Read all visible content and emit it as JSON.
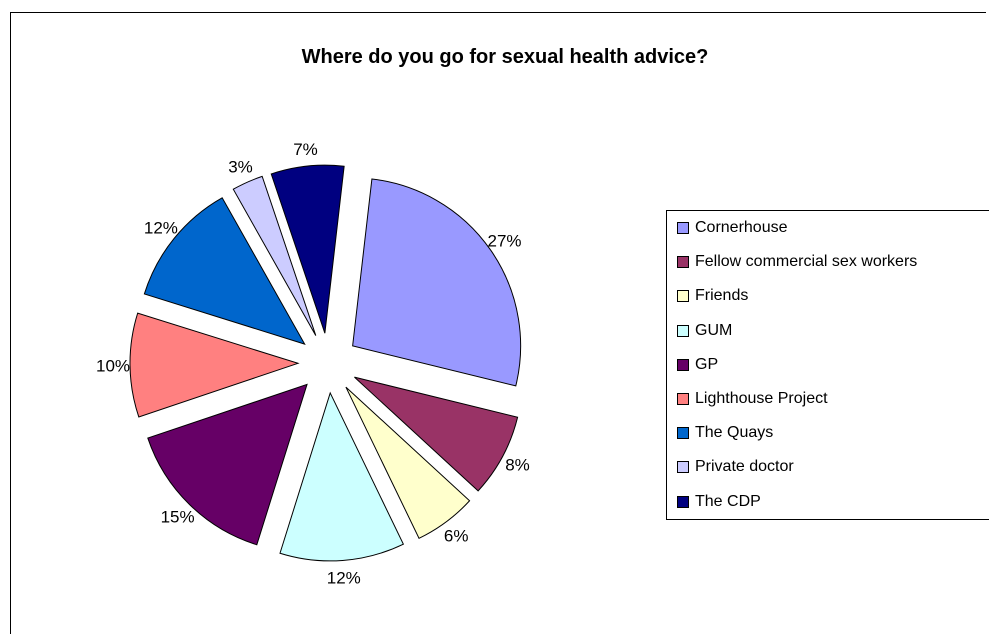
{
  "chart_data": {
    "type": "pie",
    "title": "Where do you go for sexual health advice?",
    "slices": [
      {
        "label": "Cornerhouse",
        "value": 27,
        "value_label": "27%",
        "color": "#9999ff"
      },
      {
        "label": "Fellow commercial sex workers",
        "value": 8,
        "value_label": "8%",
        "color": "#993366"
      },
      {
        "label": "Friends",
        "value": 6,
        "value_label": "6%",
        "color": "#ffffcc"
      },
      {
        "label": "GUM",
        "value": 12,
        "value_label": "12%",
        "color": "#ccffff"
      },
      {
        "label": "GP",
        "value": 15,
        "value_label": "15%",
        "color": "#660066"
      },
      {
        "label": "Lighthouse Project",
        "value": 10,
        "value_label": "10%",
        "color": "#ff8080"
      },
      {
        "label": "The Quays",
        "value": 12,
        "value_label": "12%",
        "color": "#0066cc"
      },
      {
        "label": "Private doctor",
        "value": 3,
        "value_label": "3%",
        "color": "#ccccff"
      },
      {
        "label": "The CDP",
        "value": 7,
        "value_label": "7%",
        "color": "#000080"
      }
    ],
    "legend_position": "right"
  }
}
